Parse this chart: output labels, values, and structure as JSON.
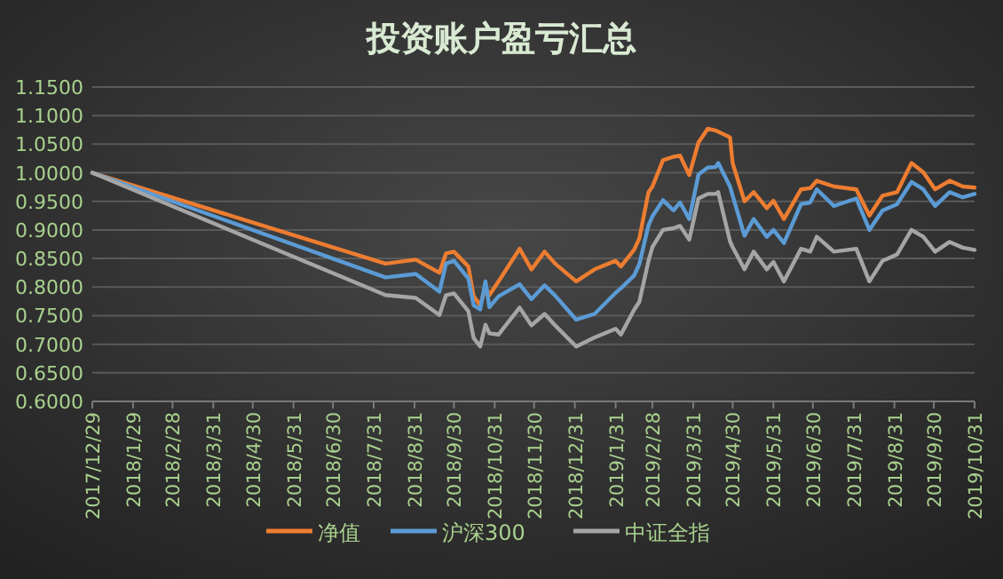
{
  "chart_data": {
    "type": "line",
    "title": "投资账户盈亏汇总",
    "x": [
      "2017-12-29",
      "2018-08-09",
      "2018-09-01",
      "2018-09-19",
      "2018-09-24",
      "2018-09-30",
      "2018-10-11",
      "2018-10-15",
      "2018-10-20",
      "2018-10-24",
      "2018-10-27",
      "2018-11-03",
      "2018-11-19",
      "2018-11-28",
      "2018-12-08",
      "2018-12-16",
      "2019-01-01",
      "2019-01-15",
      "2019-01-31",
      "2019-02-04",
      "2019-02-14",
      "2019-02-18",
      "2019-02-25",
      "2019-02-28",
      "2019-03-08",
      "2019-03-16",
      "2019-03-21",
      "2019-03-28",
      "2019-04-04",
      "2019-04-11",
      "2019-04-17",
      "2019-04-19",
      "2019-04-28",
      "2019-04-30",
      "2019-05-09",
      "2019-05-16",
      "2019-05-26",
      "2019-05-31",
      "2019-06-08",
      "2019-06-21",
      "2019-06-28",
      "2019-07-03",
      "2019-07-16",
      "2019-08-02",
      "2019-08-12",
      "2019-08-22",
      "2019-09-02",
      "2019-09-13",
      "2019-09-22",
      "2019-10-01",
      "2019-10-12",
      "2019-10-22",
      "2019-10-31"
    ],
    "series": [
      {
        "name": "净值",
        "color": "#ed7d31",
        "values": [
          1.0,
          0.841,
          0.848,
          0.825,
          0.859,
          0.862,
          0.836,
          0.784,
          0.768,
          0.8,
          0.786,
          0.81,
          0.867,
          0.831,
          0.862,
          0.841,
          0.81,
          0.831,
          0.846,
          0.836,
          0.865,
          0.885,
          0.966,
          0.976,
          1.022,
          1.028,
          1.03,
          0.996,
          1.053,
          1.077,
          1.074,
          1.072,
          1.062,
          1.017,
          0.95,
          0.966,
          0.938,
          0.951,
          0.919,
          0.971,
          0.973,
          0.986,
          0.976,
          0.971,
          0.925,
          0.96,
          0.966,
          1.017,
          1.001,
          0.971,
          0.986,
          0.976,
          0.974
        ]
      },
      {
        "name": "沪深300",
        "color": "#5b9bd5",
        "values": [
          1.0,
          0.817,
          0.823,
          0.792,
          0.841,
          0.846,
          0.815,
          0.768,
          0.761,
          0.81,
          0.765,
          0.784,
          0.805,
          0.779,
          0.803,
          0.785,
          0.743,
          0.753,
          0.79,
          0.798,
          0.82,
          0.84,
          0.908,
          0.924,
          0.952,
          0.934,
          0.948,
          0.919,
          0.997,
          1.009,
          1.01,
          1.017,
          0.976,
          0.96,
          0.89,
          0.919,
          0.888,
          0.9,
          0.877,
          0.945,
          0.948,
          0.971,
          0.942,
          0.955,
          0.9,
          0.934,
          0.945,
          0.984,
          0.971,
          0.942,
          0.966,
          0.957,
          0.963
        ]
      },
      {
        "name": "中证全指",
        "color": "#a5a5a5",
        "values": [
          1.0,
          0.786,
          0.781,
          0.751,
          0.786,
          0.789,
          0.758,
          0.711,
          0.696,
          0.734,
          0.719,
          0.717,
          0.764,
          0.733,
          0.753,
          0.733,
          0.696,
          0.712,
          0.727,
          0.717,
          0.76,
          0.774,
          0.846,
          0.87,
          0.9,
          0.903,
          0.907,
          0.883,
          0.955,
          0.963,
          0.963,
          0.966,
          0.88,
          0.87,
          0.831,
          0.862,
          0.831,
          0.844,
          0.81,
          0.867,
          0.862,
          0.888,
          0.862,
          0.867,
          0.81,
          0.846,
          0.857,
          0.9,
          0.888,
          0.862,
          0.879,
          0.869,
          0.865
        ]
      }
    ],
    "xlim": [
      "2017-12-29",
      "2019-10-31"
    ],
    "xticks": [
      {
        "value": "2017-12-29",
        "label": "2017/12/29"
      },
      {
        "value": "2018-01-29",
        "label": "2018/1/29"
      },
      {
        "value": "2018-02-28",
        "label": "2018/2/28"
      },
      {
        "value": "2018-03-31",
        "label": "2018/3/31"
      },
      {
        "value": "2018-04-30",
        "label": "2018/4/30"
      },
      {
        "value": "2018-05-31",
        "label": "2018/5/31"
      },
      {
        "value": "2018-06-30",
        "label": "2018/6/30"
      },
      {
        "value": "2018-07-31",
        "label": "2018/7/31"
      },
      {
        "value": "2018-08-31",
        "label": "2018/8/31"
      },
      {
        "value": "2018-09-30",
        "label": "2018/9/30"
      },
      {
        "value": "2018-10-31",
        "label": "2018/10/31"
      },
      {
        "value": "2018-11-30",
        "label": "2018/11/30"
      },
      {
        "value": "2018-12-31",
        "label": "2018/12/31"
      },
      {
        "value": "2019-01-31",
        "label": "2019/1/31"
      },
      {
        "value": "2019-02-28",
        "label": "2019/2/28"
      },
      {
        "value": "2019-03-31",
        "label": "2019/3/31"
      },
      {
        "value": "2019-04-30",
        "label": "2019/4/30"
      },
      {
        "value": "2019-05-31",
        "label": "2019/5/31"
      },
      {
        "value": "2019-06-30",
        "label": "2019/6/30"
      },
      {
        "value": "2019-07-31",
        "label": "2019/7/31"
      },
      {
        "value": "2019-08-31",
        "label": "2019/8/31"
      },
      {
        "value": "2019-09-30",
        "label": "2019/9/30"
      },
      {
        "value": "2019-10-31",
        "label": "2019/10/31"
      }
    ],
    "ylim": [
      0.6,
      1.15
    ],
    "yticks": [
      {
        "value": 0.6,
        "label": "0.6000"
      },
      {
        "value": 0.65,
        "label": "0.6500"
      },
      {
        "value": 0.7,
        "label": "0.7000"
      },
      {
        "value": 0.75,
        "label": "0.7500"
      },
      {
        "value": 0.8,
        "label": "0.8000"
      },
      {
        "value": 0.85,
        "label": "0.8500"
      },
      {
        "value": 0.9,
        "label": "0.9000"
      },
      {
        "value": 0.95,
        "label": "0.9500"
      },
      {
        "value": 1.0,
        "label": "1.0000"
      },
      {
        "value": 1.05,
        "label": "1.0500"
      },
      {
        "value": 1.1,
        "label": "1.1000"
      },
      {
        "value": 1.15,
        "label": "1.1500"
      }
    ],
    "grid": "y",
    "legend": "bottom"
  }
}
